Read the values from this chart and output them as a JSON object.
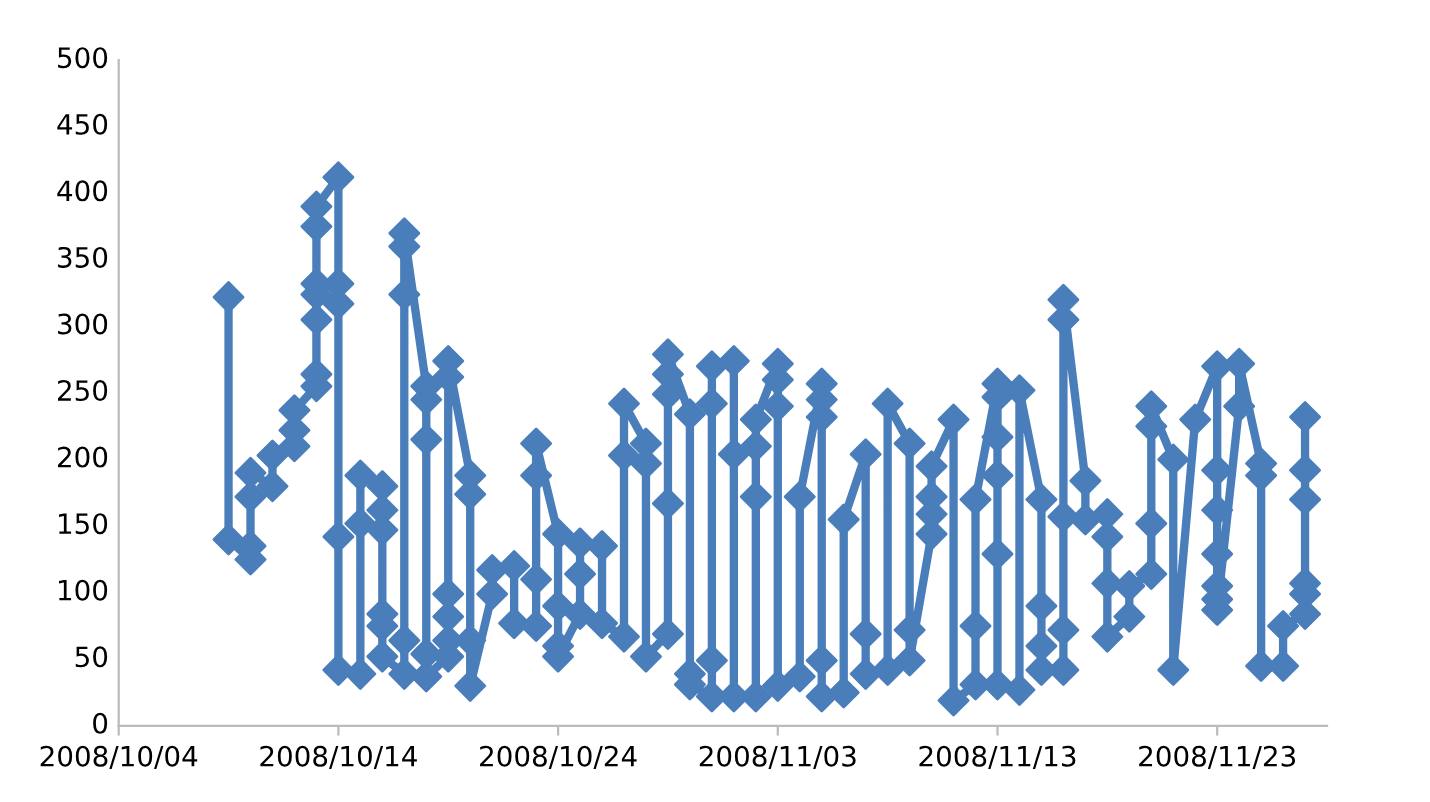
{
  "chart_data": {
    "type": "line",
    "marker": "diamond",
    "line_style": "solid",
    "grid": false,
    "legend": false,
    "xlim": [
      "2008-10-04",
      "2008-11-28"
    ],
    "xticks": [
      {
        "value": "2008-10-04",
        "label": "2008/10/04"
      },
      {
        "value": "2008-10-14",
        "label": "2008/10/14"
      },
      {
        "value": "2008-10-24",
        "label": "2008/10/24"
      },
      {
        "value": "2008-11-03",
        "label": "2008/11/03"
      },
      {
        "value": "2008-11-13",
        "label": "2008/11/13"
      },
      {
        "value": "2008-11-23",
        "label": "2008/11/23"
      }
    ],
    "ylim": [
      0,
      500
    ],
    "yticks": [
      0,
      50,
      100,
      150,
      200,
      250,
      300,
      350,
      400,
      450,
      500
    ],
    "series": [
      {
        "color": "#4a7ebb",
        "x": [
          "2008-10-09",
          "2008-10-09",
          "2008-10-10",
          "2008-10-10",
          "2008-10-10",
          "2008-10-10",
          "2008-10-11",
          "2008-10-11",
          "2008-10-12",
          "2008-10-12",
          "2008-10-12",
          "2008-10-13",
          "2008-10-13",
          "2008-10-13",
          "2008-10-13",
          "2008-10-13",
          "2008-10-13",
          "2008-10-13",
          "2008-10-14",
          "2008-10-14",
          "2008-10-14",
          "2008-10-14",
          "2008-10-14",
          "2008-10-15",
          "2008-10-15",
          "2008-10-15",
          "2008-10-16",
          "2008-10-16",
          "2008-10-16",
          "2008-10-16",
          "2008-10-16",
          "2008-10-16",
          "2008-10-17",
          "2008-10-17",
          "2008-10-17",
          "2008-10-17",
          "2008-10-17",
          "2008-10-18",
          "2008-10-18",
          "2008-10-18",
          "2008-10-18",
          "2008-10-18",
          "2008-10-19",
          "2008-10-19",
          "2008-10-19",
          "2008-10-19",
          "2008-10-19",
          "2008-10-19",
          "2008-10-20",
          "2008-10-20",
          "2008-10-20",
          "2008-10-20",
          "2008-10-21",
          "2008-10-21",
          "2008-10-22",
          "2008-10-22",
          "2008-10-23",
          "2008-10-23",
          "2008-10-23",
          "2008-10-23",
          "2008-10-24",
          "2008-10-24",
          "2008-10-24",
          "2008-10-24",
          "2008-10-25",
          "2008-10-25",
          "2008-10-25",
          "2008-10-26",
          "2008-10-26",
          "2008-10-27",
          "2008-10-27",
          "2008-10-27",
          "2008-10-28",
          "2008-10-28",
          "2008-10-28",
          "2008-10-29",
          "2008-10-29",
          "2008-10-29",
          "2008-10-29",
          "2008-10-29",
          "2008-10-30",
          "2008-10-30",
          "2008-10-30",
          "2008-10-31",
          "2008-10-31",
          "2008-10-31",
          "2008-10-31",
          "2008-11-01",
          "2008-11-01",
          "2008-11-01",
          "2008-11-02",
          "2008-11-02",
          "2008-11-02",
          "2008-11-02",
          "2008-11-03",
          "2008-11-03",
          "2008-11-03",
          "2008-11-03",
          "2008-11-04",
          "2008-11-04",
          "2008-11-05",
          "2008-11-05",
          "2008-11-05",
          "2008-11-05",
          "2008-11-05",
          "2008-11-06",
          "2008-11-06",
          "2008-11-07",
          "2008-11-07",
          "2008-11-07",
          "2008-11-08",
          "2008-11-08",
          "2008-11-09",
          "2008-11-09",
          "2008-11-09",
          "2008-11-10",
          "2008-11-10",
          "2008-11-10",
          "2008-11-10",
          "2008-11-11",
          "2008-11-11",
          "2008-11-12",
          "2008-11-12",
          "2008-11-12",
          "2008-11-13",
          "2008-11-13",
          "2008-11-13",
          "2008-11-13",
          "2008-11-13",
          "2008-11-13",
          "2008-11-14",
          "2008-11-14",
          "2008-11-15",
          "2008-11-15",
          "2008-11-15",
          "2008-11-15",
          "2008-11-16",
          "2008-11-16",
          "2008-11-16",
          "2008-11-16",
          "2008-11-16",
          "2008-11-17",
          "2008-11-17",
          "2008-11-18",
          "2008-11-18",
          "2008-11-18",
          "2008-11-18",
          "2008-11-19",
          "2008-11-19",
          "2008-11-20",
          "2008-11-20",
          "2008-11-20",
          "2008-11-20",
          "2008-11-21",
          "2008-11-21",
          "2008-11-22",
          "2008-11-23",
          "2008-11-23",
          "2008-11-23",
          "2008-11-23",
          "2008-11-23",
          "2008-11-23",
          "2008-11-23",
          "2008-11-24",
          "2008-11-24",
          "2008-11-25",
          "2008-11-25",
          "2008-11-25",
          "2008-11-26",
          "2008-11-26",
          "2008-11-27",
          "2008-11-27",
          "2008-11-27",
          "2008-11-27",
          "2008-11-27",
          "2008-11-27"
        ],
        "values": [
          322,
          140,
          125,
          135,
          172,
          190,
          180,
          203,
          210,
          222,
          237,
          255,
          264,
          305,
          324,
          332,
          375,
          390,
          412,
          332,
          317,
          142,
          42,
          39,
          152,
          188,
          180,
          162,
          147,
          84,
          75,
          52,
          39,
          64,
          324,
          360,
          370,
          255,
          245,
          215,
          54,
          37,
          52,
          64,
          82,
          99,
          262,
          274,
          188,
          174,
          64,
          30,
          99,
          117,
          120,
          77,
          75,
          110,
          188,
          212,
          144,
          90,
          60,
          52,
          84,
          114,
          137,
          135,
          77,
          67,
          203,
          242,
          212,
          197,
          52,
          69,
          167,
          249,
          264,
          279,
          234,
          39,
          31,
          22,
          49,
          242,
          270,
          274,
          204,
          22,
          22,
          172,
          210,
          230,
          272,
          260,
          240,
          30,
          37,
          172,
          257,
          245,
          232,
          49,
          22,
          25,
          155,
          204,
          69,
          39,
          42,
          242,
          212,
          72,
          49,
          144,
          159,
          172,
          195,
          230,
          19,
          31,
          75,
          170,
          257,
          247,
          217,
          188,
          129,
          31,
          27,
          252,
          170,
          90,
          60,
          42,
          42,
          72,
          157,
          305,
          320,
          184,
          155,
          159,
          142,
          107,
          67,
          82,
          105,
          114,
          152,
          225,
          240,
          200,
          42,
          230,
          270,
          192,
          162,
          129,
          105,
          95,
          87,
          240,
          272,
          197,
          188,
          45,
          45,
          75,
          84,
          99,
          107,
          170,
          192,
          232
        ]
      }
    ]
  }
}
